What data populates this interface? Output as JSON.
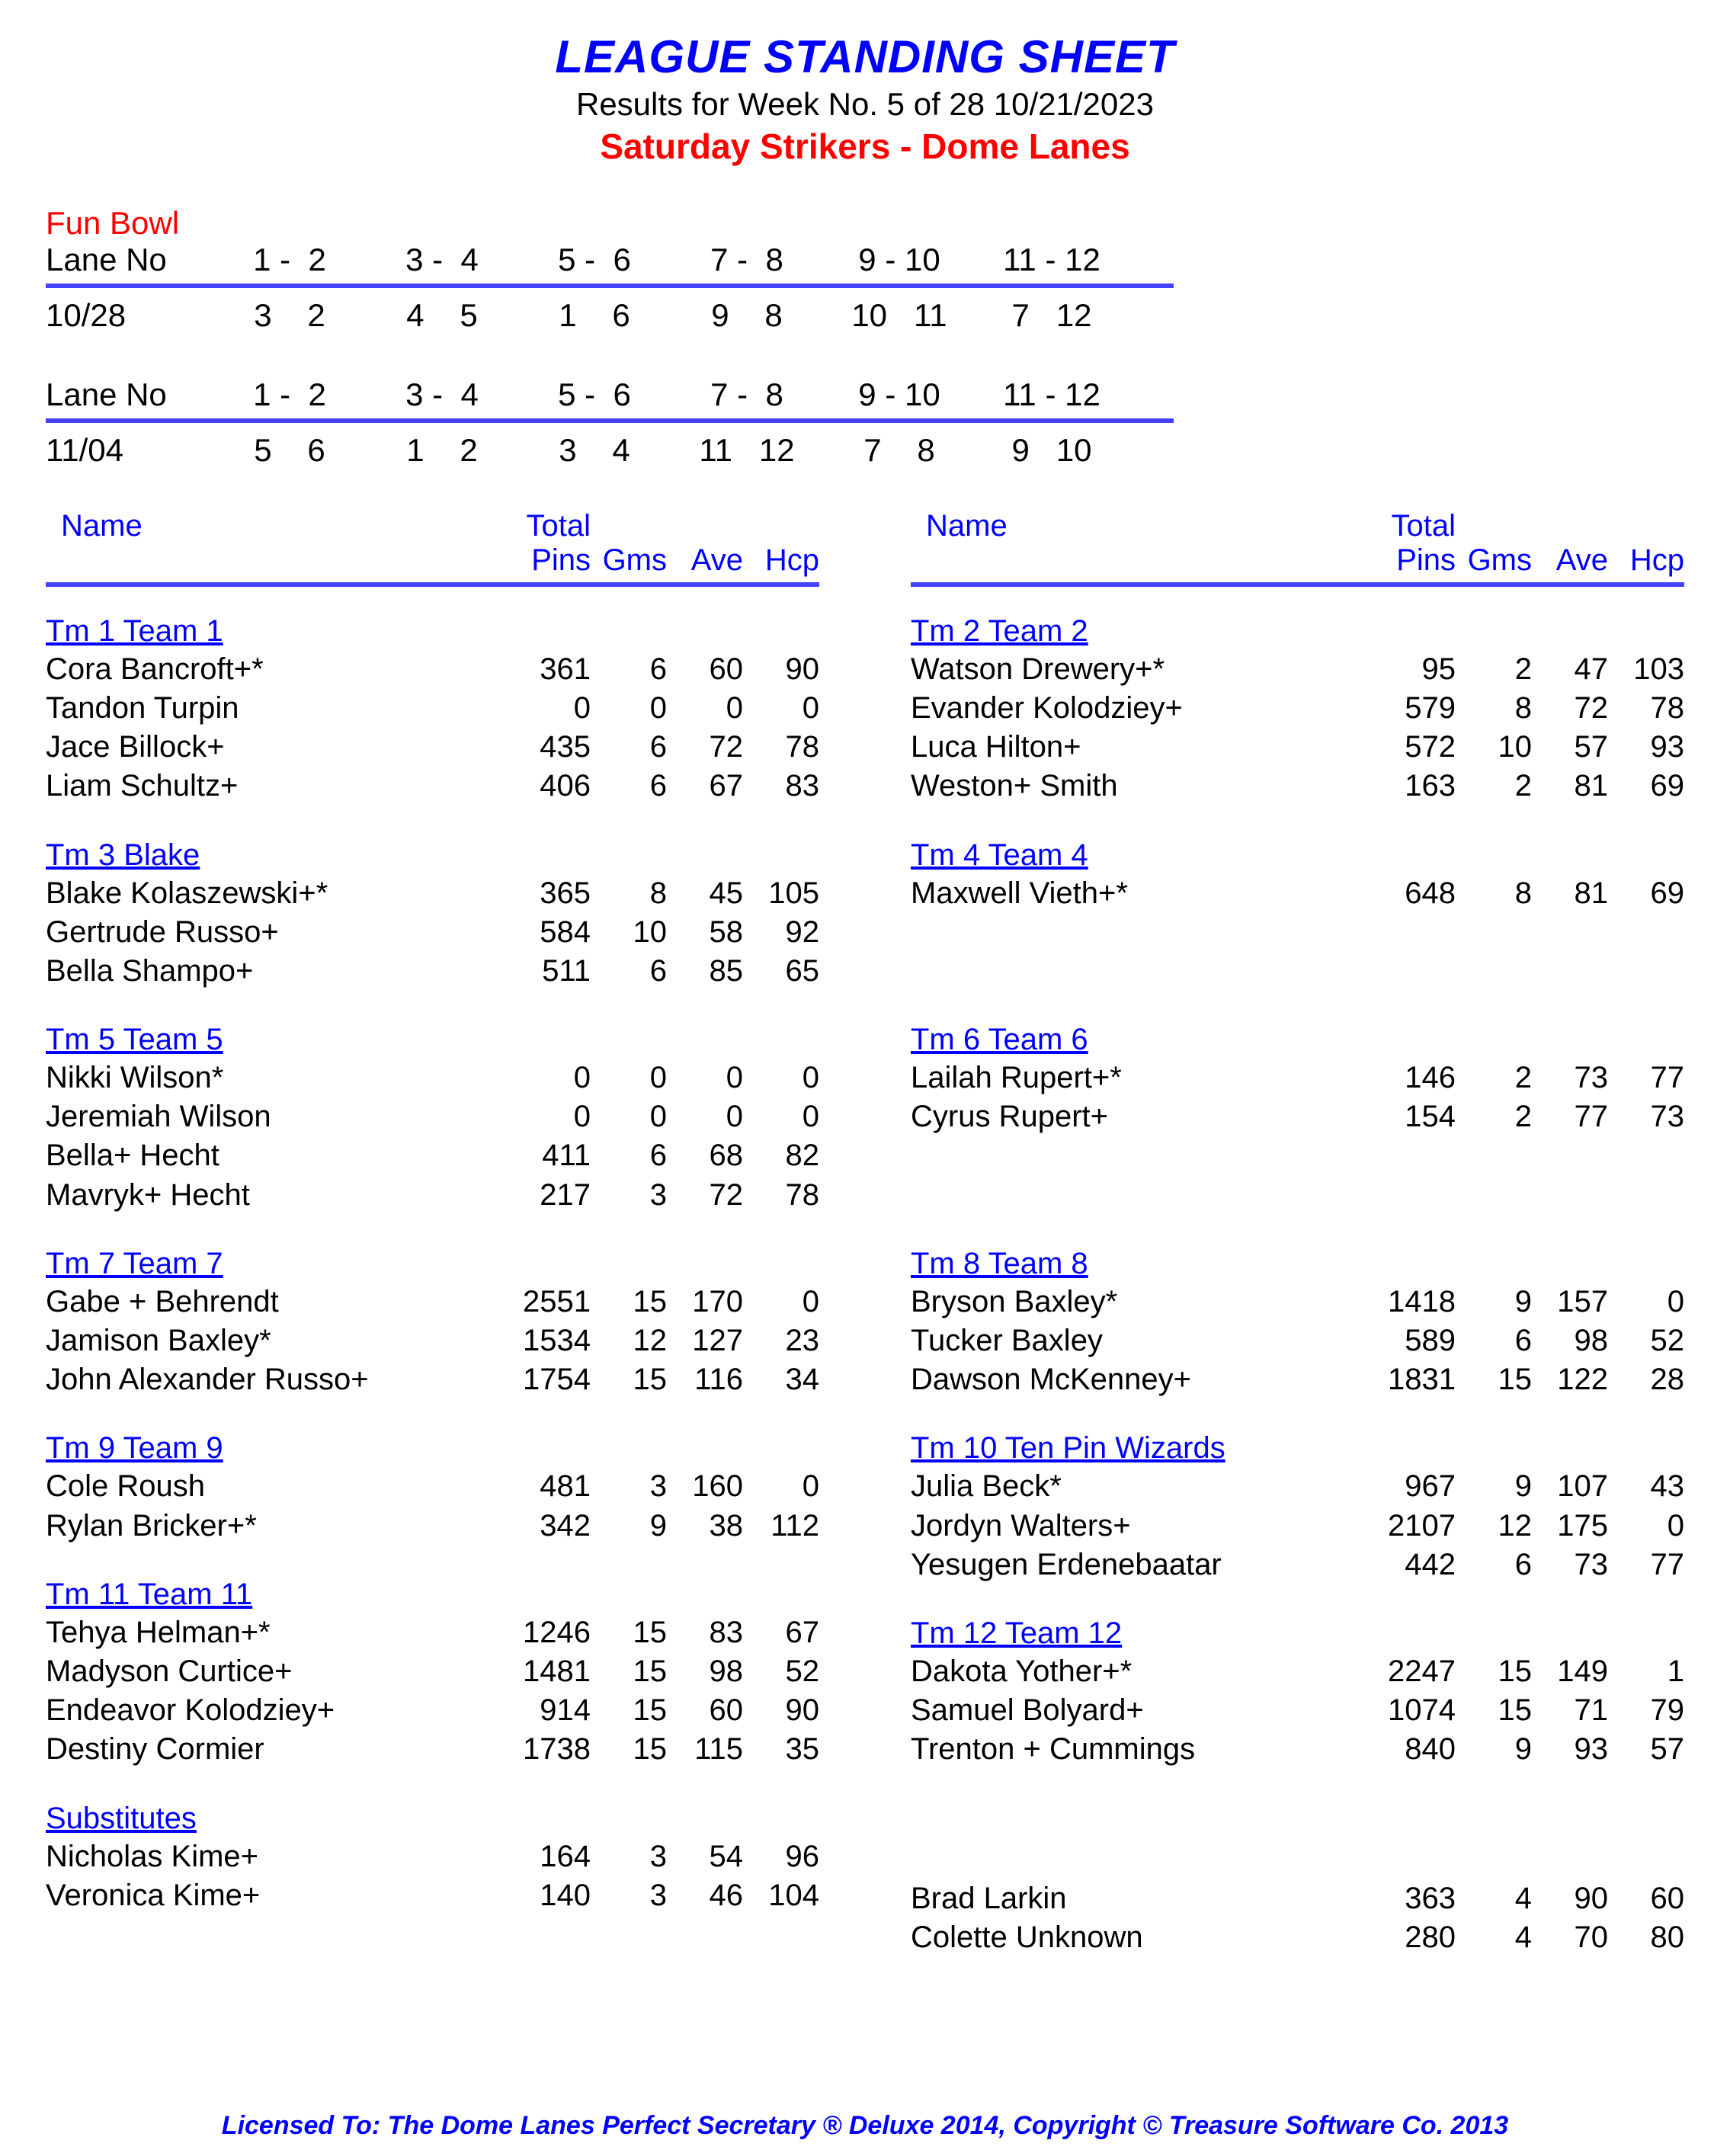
{
  "header": {
    "title": "LEAGUE STANDING SHEET",
    "subtitle": "Results for Week No. 5 of 28    10/21/2023",
    "league": "Saturday Strikers - Dome Lanes"
  },
  "funBowl": "Fun Bowl",
  "laneLabel": "Lane No",
  "schedule": [
    {
      "date": "10/28",
      "lanes": [
        "1 -  2",
        "3 -  4",
        "5 -  6",
        "7 -  8",
        "9 - 10",
        "11 - 12"
      ],
      "teams": [
        "3    2",
        "4    5",
        "1    6",
        "9    8",
        "10   11",
        "7   12"
      ]
    },
    {
      "date": "11/04",
      "lanes": [
        "1 -  2",
        "3 -  4",
        "5 -  6",
        "7 -  8",
        "9 - 10",
        "11 - 12"
      ],
      "teams": [
        "5    6",
        "1    2",
        "3    4",
        "11   12",
        "7    8",
        "9   10"
      ]
    }
  ],
  "columnHeaders": {
    "name": "Name",
    "total": "Total",
    "pins": "Pins",
    "gms": "Gms",
    "ave": "Ave",
    "hcp": "Hcp"
  },
  "leftTeams": [
    {
      "name": "Tm 1 Team 1",
      "players": [
        {
          "n": "Cora Bancroft+*",
          "p": "361",
          "g": "6",
          "a": "60",
          "h": "90"
        },
        {
          "n": "Tandon Turpin",
          "p": "0",
          "g": "0",
          "a": "0",
          "h": "0"
        },
        {
          "n": "Jace Billock+",
          "p": "435",
          "g": "6",
          "a": "72",
          "h": "78"
        },
        {
          "n": "Liam Schultz+",
          "p": "406",
          "g": "6",
          "a": "67",
          "h": "83"
        }
      ]
    },
    {
      "name": "Tm 3 Blake",
      "players": [
        {
          "n": "Blake Kolaszewski+*",
          "p": "365",
          "g": "8",
          "a": "45",
          "h": "105"
        },
        {
          "n": "Gertrude Russo+",
          "p": "584",
          "g": "10",
          "a": "58",
          "h": "92"
        },
        {
          "n": "Bella Shampo+",
          "p": "511",
          "g": "6",
          "a": "85",
          "h": "65"
        }
      ]
    },
    {
      "name": "Tm 5 Team 5",
      "players": [
        {
          "n": "Nikki Wilson*",
          "p": "0",
          "g": "0",
          "a": "0",
          "h": "0"
        },
        {
          "n": "Jeremiah Wilson",
          "p": "0",
          "g": "0",
          "a": "0",
          "h": "0"
        },
        {
          "n": "Bella+ Hecht",
          "p": "411",
          "g": "6",
          "a": "68",
          "h": "82"
        },
        {
          "n": "Mavryk+ Hecht",
          "p": "217",
          "g": "3",
          "a": "72",
          "h": "78"
        }
      ]
    },
    {
      "name": "Tm 7 Team 7",
      "players": [
        {
          "n": "Gabe + Behrendt",
          "p": "2551",
          "g": "15",
          "a": "170",
          "h": "0"
        },
        {
          "n": "Jamison Baxley*",
          "p": "1534",
          "g": "12",
          "a": "127",
          "h": "23"
        },
        {
          "n": "John Alexander Russo+",
          "p": "1754",
          "g": "15",
          "a": "116",
          "h": "34"
        }
      ]
    },
    {
      "name": "Tm 9 Team 9",
      "players": [
        {
          "n": "Cole Roush",
          "p": "481",
          "g": "3",
          "a": "160",
          "h": "0"
        },
        {
          "n": "Rylan Bricker+*",
          "p": "342",
          "g": "9",
          "a": "38",
          "h": "112"
        }
      ]
    },
    {
      "name": "Tm 11 Team 11",
      "players": [
        {
          "n": "Tehya Helman+*",
          "p": "1246",
          "g": "15",
          "a": "83",
          "h": "67"
        },
        {
          "n": "Madyson Curtice+",
          "p": "1481",
          "g": "15",
          "a": "98",
          "h": "52"
        },
        {
          "n": "Endeavor Kolodziey+",
          "p": "914",
          "g": "15",
          "a": "60",
          "h": "90"
        },
        {
          "n": "Destiny Cormier",
          "p": "1738",
          "g": "15",
          "a": "115",
          "h": "35"
        }
      ]
    }
  ],
  "rightTeams": [
    {
      "name": "Tm 2 Team 2",
      "players": [
        {
          "n": "Watson Drewery+*",
          "p": "95",
          "g": "2",
          "a": "47",
          "h": "103"
        },
        {
          "n": "Evander Kolodziey+",
          "p": "579",
          "g": "8",
          "a": "72",
          "h": "78"
        },
        {
          "n": "Luca Hilton+",
          "p": "572",
          "g": "10",
          "a": "57",
          "h": "93"
        },
        {
          "n": "Weston+ Smith",
          "p": "163",
          "g": "2",
          "a": "81",
          "h": "69"
        }
      ]
    },
    {
      "name": "Tm 4 Team 4",
      "players": [
        {
          "n": "Maxwell Vieth+*",
          "p": "648",
          "g": "8",
          "a": "81",
          "h": "69"
        }
      ],
      "padRows": 2
    },
    {
      "name": "Tm 6 Team 6",
      "players": [
        {
          "n": "Lailah Rupert+*",
          "p": "146",
          "g": "2",
          "a": "73",
          "h": "77"
        },
        {
          "n": "Cyrus Rupert+",
          "p": "154",
          "g": "2",
          "a": "77",
          "h": "73"
        }
      ],
      "padRows": 2
    },
    {
      "name": "Tm 8 Team 8",
      "players": [
        {
          "n": "Bryson Baxley*",
          "p": "1418",
          "g": "9",
          "a": "157",
          "h": "0"
        },
        {
          "n": "Tucker Baxley",
          "p": "589",
          "g": "6",
          "a": "98",
          "h": "52"
        },
        {
          "n": "Dawson McKenney+",
          "p": "1831",
          "g": "15",
          "a": "122",
          "h": "28"
        }
      ]
    },
    {
      "name": "Tm 10 Ten Pin Wizards",
      "players": [
        {
          "n": "Julia Beck*",
          "p": "967",
          "g": "9",
          "a": "107",
          "h": "43"
        },
        {
          "n": "Jordyn Walters+",
          "p": "2107",
          "g": "12",
          "a": "175",
          "h": "0"
        },
        {
          "n": "Yesugen Erdenebaatar",
          "p": "442",
          "g": "6",
          "a": "73",
          "h": "77"
        }
      ]
    },
    {
      "name": "Tm 12 Team 12",
      "players": [
        {
          "n": "Dakota Yother+*",
          "p": "2247",
          "g": "15",
          "a": "149",
          "h": "1"
        },
        {
          "n": "Samuel Bolyard+",
          "p": "1074",
          "g": "15",
          "a": "71",
          "h": "79"
        },
        {
          "n": "Trenton + Cummings",
          "p": "840",
          "g": "9",
          "a": "93",
          "h": "57"
        }
      ],
      "padRows": 1
    }
  ],
  "subsTitle": "Substitutes",
  "subsLeft": [
    {
      "n": "Nicholas Kime+",
      "p": "164",
      "g": "3",
      "a": "54",
      "h": "96"
    },
    {
      "n": "Veronica Kime+",
      "p": "140",
      "g": "3",
      "a": "46",
      "h": "104"
    }
  ],
  "subsRight": [
    {
      "n": "Brad Larkin",
      "p": "363",
      "g": "4",
      "a": "90",
      "h": "60"
    },
    {
      "n": "Colette Unknown",
      "p": "280",
      "g": "4",
      "a": "70",
      "h": "80"
    }
  ],
  "footer": "Licensed To: The Dome Lanes    Perfect Secretary ® Deluxe  2014, Copyright © Treasure Software Co. 2013"
}
